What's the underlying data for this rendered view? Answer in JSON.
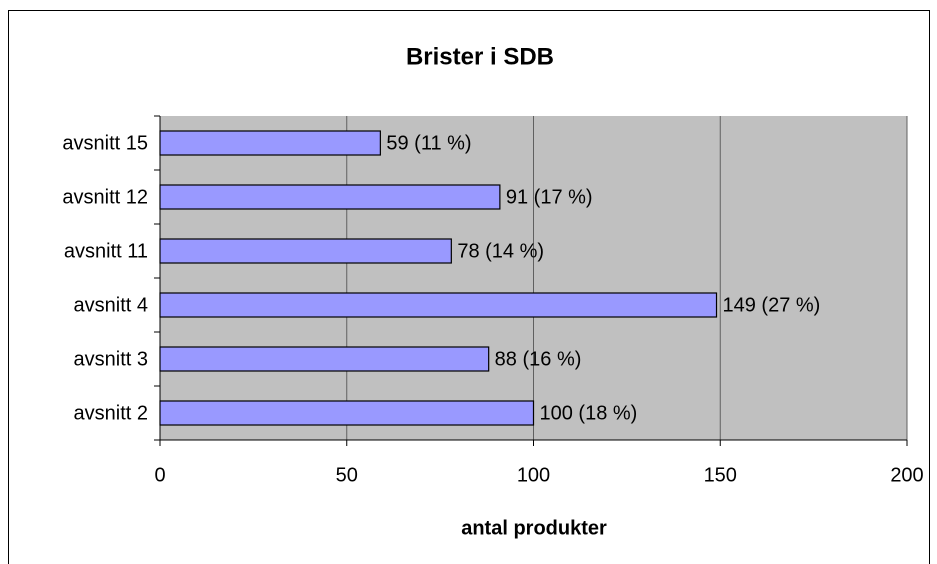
{
  "chart_data": {
    "type": "bar",
    "orientation": "horizontal",
    "title": "Brister i SDB",
    "x_label": "antal produkter",
    "categories": [
      "avsnitt 15",
      "avsnitt 12",
      "avsnitt 11",
      "avsnitt 4",
      "avsnitt 3",
      "avsnitt 2"
    ],
    "values": [
      59,
      91,
      78,
      149,
      88,
      100
    ],
    "value_labels": [
      "59 (11 %)",
      "91 (17 %)",
      "78 (14 %)",
      "149 (27 %)",
      "88 (16 %)",
      "100 (18 %)"
    ],
    "color": "#9999ff",
    "xlim": [
      0,
      200
    ],
    "xticks": [
      0,
      50,
      100,
      150,
      200
    ],
    "grid": true
  }
}
